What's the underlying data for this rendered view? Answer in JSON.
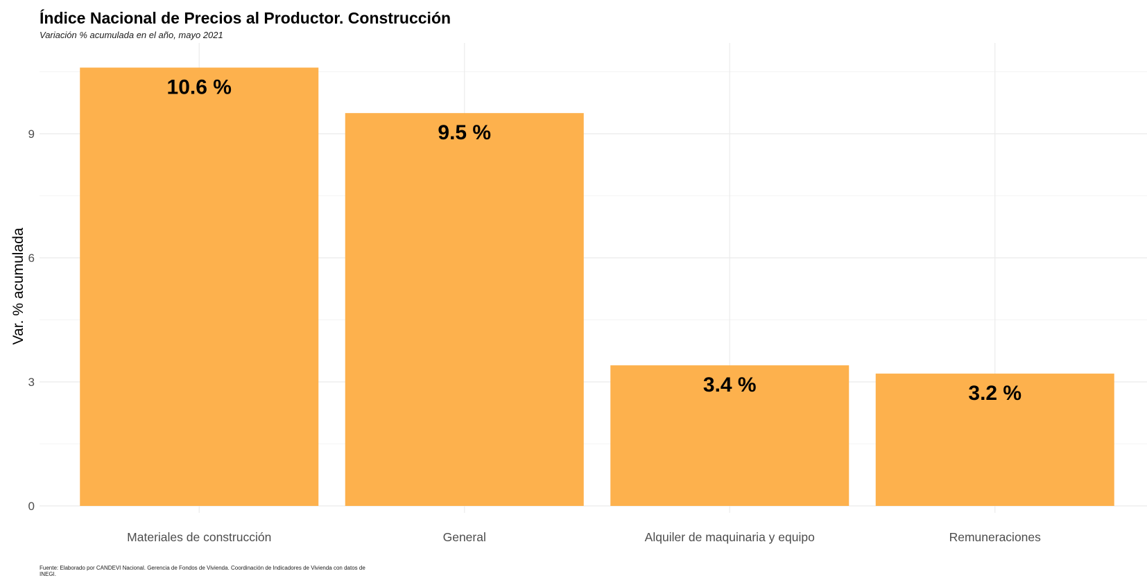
{
  "chart_data": {
    "type": "bar",
    "title": "Índice Nacional de Precios al Productor. Construcción",
    "subtitle": "Variación % acumulada en el año, mayo 2021",
    "xlabel": "",
    "ylabel": "Var. % acumulada",
    "categories": [
      "Materiales de construcción",
      "General",
      "Alquiler de maquinaria y equipo",
      "Remuneraciones"
    ],
    "values": [
      10.6,
      9.5,
      3.4,
      3.2
    ],
    "data_labels": [
      "10.6 %",
      "9.5 %",
      "3.4 %",
      "3.2 %"
    ],
    "ylim": [
      0,
      11
    ],
    "yticks": [
      0,
      3,
      6,
      9
    ],
    "ytick_labels": [
      "0",
      "3",
      "6",
      "9"
    ],
    "grid": true,
    "legend": "none",
    "bar_color": "#FDB14D",
    "caption": "Fuente: Elaborado por CANDEVI Nacional. Gerencia de Fondos de Vivienda. Coordinación de Indicadores de Vivienda con datos de INEGI."
  }
}
